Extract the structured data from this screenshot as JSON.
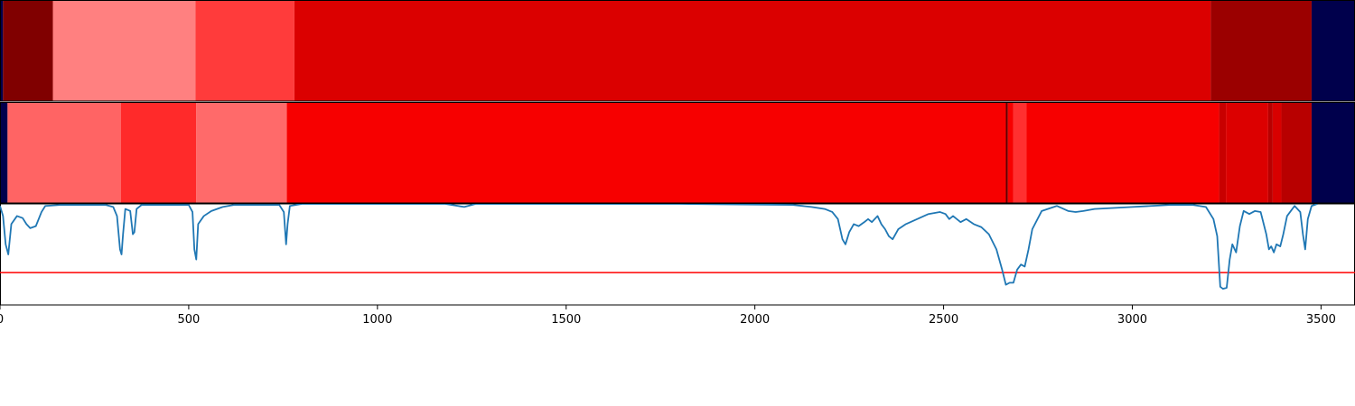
{
  "chart_data": {
    "type": "heatmap+line",
    "x_range": [
      0,
      3590
    ],
    "x_ticks": [
      "0",
      "500",
      "1000",
      "1500",
      "2000",
      "2500",
      "3000",
      "3500"
    ],
    "heatmap_rows": [
      {
        "segments": [
          {
            "start": 0,
            "end": 8,
            "color": "#00004c"
          },
          {
            "start": 8,
            "end": 140,
            "color": "#800000"
          },
          {
            "start": 140,
            "end": 518,
            "color": "#ff8080"
          },
          {
            "start": 518,
            "end": 780,
            "color": "#ff3b3b"
          },
          {
            "start": 780,
            "end": 3208,
            "color": "#db0000"
          },
          {
            "start": 3208,
            "end": 3475,
            "color": "#9b0000"
          },
          {
            "start": 3475,
            "end": 3590,
            "color": "#00004c"
          }
        ]
      },
      {
        "segments": [
          {
            "start": 0,
            "end": 20,
            "color": "#00004c"
          },
          {
            "start": 20,
            "end": 320,
            "color": "#ff6464"
          },
          {
            "start": 320,
            "end": 520,
            "color": "#ff2a2a"
          },
          {
            "start": 520,
            "end": 760,
            "color": "#ff6a6a"
          },
          {
            "start": 760,
            "end": 2665,
            "color": "#f70000"
          },
          {
            "start": 2665,
            "end": 2670,
            "color": "#600000"
          },
          {
            "start": 2670,
            "end": 2685,
            "color": "#f70000"
          },
          {
            "start": 2685,
            "end": 2720,
            "color": "#ff3030"
          },
          {
            "start": 2720,
            "end": 3230,
            "color": "#f70000"
          },
          {
            "start": 3230,
            "end": 3248,
            "color": "#c80000"
          },
          {
            "start": 3248,
            "end": 3360,
            "color": "#dc0000"
          },
          {
            "start": 3360,
            "end": 3372,
            "color": "#b80000"
          },
          {
            "start": 3372,
            "end": 3395,
            "color": "#d80000"
          },
          {
            "start": 3395,
            "end": 3475,
            "color": "#b80000"
          },
          {
            "start": 3475,
            "end": 3590,
            "color": "#00004c"
          }
        ]
      }
    ],
    "line_series": {
      "color": "#1f77b4",
      "y_range": [
        0,
        1
      ],
      "points": [
        [
          0,
          0.98
        ],
        [
          8,
          0.88
        ],
        [
          15,
          0.6
        ],
        [
          22,
          0.5
        ],
        [
          30,
          0.8
        ],
        [
          45,
          0.88
        ],
        [
          60,
          0.86
        ],
        [
          70,
          0.8
        ],
        [
          80,
          0.76
        ],
        [
          95,
          0.78
        ],
        [
          110,
          0.92
        ],
        [
          120,
          0.98
        ],
        [
          160,
          0.99
        ],
        [
          280,
          0.99
        ],
        [
          300,
          0.97
        ],
        [
          310,
          0.88
        ],
        [
          318,
          0.55
        ],
        [
          322,
          0.5
        ],
        [
          326,
          0.7
        ],
        [
          332,
          0.95
        ],
        [
          345,
          0.93
        ],
        [
          352,
          0.7
        ],
        [
          356,
          0.72
        ],
        [
          362,
          0.95
        ],
        [
          375,
          0.99
        ],
        [
          500,
          0.99
        ],
        [
          510,
          0.92
        ],
        [
          515,
          0.55
        ],
        [
          520,
          0.45
        ],
        [
          525,
          0.8
        ],
        [
          540,
          0.88
        ],
        [
          560,
          0.93
        ],
        [
          590,
          0.97
        ],
        [
          620,
          0.99
        ],
        [
          740,
          0.99
        ],
        [
          752,
          0.92
        ],
        [
          758,
          0.6
        ],
        [
          762,
          0.8
        ],
        [
          768,
          0.98
        ],
        [
          800,
          1.0
        ],
        [
          1180,
          1.0
        ],
        [
          1230,
          0.97
        ],
        [
          1260,
          1.0
        ],
        [
          1800,
          1.0
        ],
        [
          2100,
          0.99
        ],
        [
          2150,
          0.97
        ],
        [
          2185,
          0.95
        ],
        [
          2205,
          0.92
        ],
        [
          2220,
          0.85
        ],
        [
          2232,
          0.65
        ],
        [
          2240,
          0.6
        ],
        [
          2250,
          0.72
        ],
        [
          2262,
          0.8
        ],
        [
          2275,
          0.78
        ],
        [
          2290,
          0.82
        ],
        [
          2300,
          0.85
        ],
        [
          2310,
          0.82
        ],
        [
          2325,
          0.88
        ],
        [
          2335,
          0.8
        ],
        [
          2345,
          0.75
        ],
        [
          2355,
          0.68
        ],
        [
          2365,
          0.65
        ],
        [
          2380,
          0.75
        ],
        [
          2400,
          0.8
        ],
        [
          2430,
          0.85
        ],
        [
          2460,
          0.9
        ],
        [
          2490,
          0.92
        ],
        [
          2505,
          0.9
        ],
        [
          2515,
          0.85
        ],
        [
          2525,
          0.88
        ],
        [
          2545,
          0.82
        ],
        [
          2560,
          0.85
        ],
        [
          2580,
          0.8
        ],
        [
          2600,
          0.77
        ],
        [
          2620,
          0.7
        ],
        [
          2640,
          0.55
        ],
        [
          2655,
          0.35
        ],
        [
          2665,
          0.2
        ],
        [
          2675,
          0.22
        ],
        [
          2685,
          0.22
        ],
        [
          2695,
          0.35
        ],
        [
          2705,
          0.4
        ],
        [
          2715,
          0.38
        ],
        [
          2725,
          0.55
        ],
        [
          2735,
          0.75
        ],
        [
          2760,
          0.93
        ],
        [
          2800,
          0.98
        ],
        [
          2830,
          0.93
        ],
        [
          2850,
          0.92
        ],
        [
          2870,
          0.93
        ],
        [
          2900,
          0.95
        ],
        [
          2950,
          0.96
        ],
        [
          3000,
          0.97
        ],
        [
          3050,
          0.98
        ],
        [
          3100,
          0.99
        ],
        [
          3160,
          0.99
        ],
        [
          3195,
          0.97
        ],
        [
          3215,
          0.85
        ],
        [
          3225,
          0.68
        ],
        [
          3233,
          0.18
        ],
        [
          3240,
          0.16
        ],
        [
          3250,
          0.17
        ],
        [
          3258,
          0.45
        ],
        [
          3265,
          0.6
        ],
        [
          3275,
          0.52
        ],
        [
          3285,
          0.78
        ],
        [
          3295,
          0.93
        ],
        [
          3310,
          0.9
        ],
        [
          3325,
          0.93
        ],
        [
          3340,
          0.92
        ],
        [
          3355,
          0.7
        ],
        [
          3362,
          0.55
        ],
        [
          3368,
          0.58
        ],
        [
          3375,
          0.52
        ],
        [
          3382,
          0.6
        ],
        [
          3392,
          0.58
        ],
        [
          3400,
          0.7
        ],
        [
          3410,
          0.88
        ],
        [
          3420,
          0.93
        ],
        [
          3430,
          0.98
        ],
        [
          3445,
          0.92
        ],
        [
          3452,
          0.7
        ],
        [
          3458,
          0.55
        ],
        [
          3465,
          0.85
        ],
        [
          3475,
          0.98
        ],
        [
          3490,
          1.0
        ]
      ]
    },
    "threshold_line": {
      "y": 0.32,
      "color": "#ff0000"
    }
  }
}
